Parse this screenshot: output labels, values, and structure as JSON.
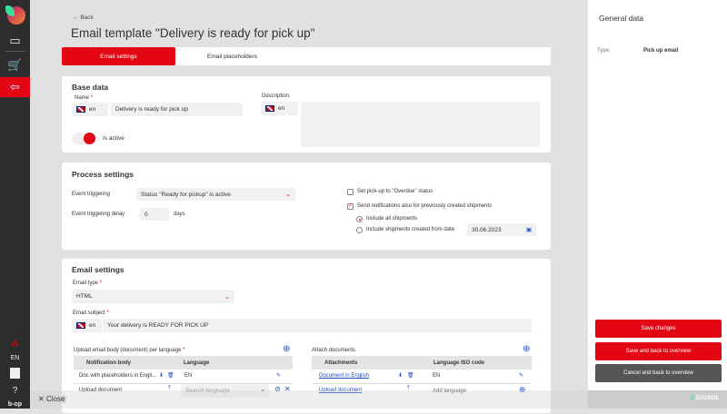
{
  "sidebar": {
    "lang": "EN",
    "icons": [
      "logo",
      "monitor-icon",
      "cart-add-icon",
      "clipboard-back-icon",
      "org-icon",
      "user-icon",
      "help-icon",
      "bop-logo"
    ]
  },
  "header": {
    "back": "Back",
    "title": "Email template \"Delivery is ready for pick up\""
  },
  "tabs": [
    {
      "label": "Email settings",
      "active": true
    },
    {
      "label": "Email placeholders",
      "active": false
    }
  ],
  "base": {
    "title": "Base data",
    "name_label": "Name",
    "required": "*",
    "lang": "en",
    "name_value": "Delivery is ready for pick up",
    "desc_label": "Description",
    "desc_lang": "en",
    "desc_value": "",
    "active_label": "Is active",
    "active": true
  },
  "process": {
    "title": "Process settings",
    "event_label": "Event triggering",
    "event_value": "Status \"Ready for pickup\" is active",
    "delay_label": "Event triggering delay",
    "delay_value": "0",
    "delay_unit": "days",
    "overdue_label": "Set pick-up to \"Overdue\" status",
    "overdue_checked": false,
    "prev_label": "Send notifications also for previously created shipments",
    "prev_checked": true,
    "include_all": "Include all shipments",
    "include_from": "Include shipments created from date",
    "date": "30.06.2023",
    "selected": "include_all"
  },
  "email": {
    "title": "Email settings",
    "type_label": "Email type",
    "type_value": "HTML",
    "subject_label": "Email subject",
    "subject_lang": "en",
    "subject_value": "Your delivery is READY FOR PICK UP",
    "body_label": "Upload email body (document) per language",
    "body_cols": [
      "Notification body",
      "Language"
    ],
    "body_rows": [
      {
        "name": "Doc with placeholders in Engli...",
        "lang": "EN"
      }
    ],
    "body_upload": "Upload document",
    "search_placeholder": "Search language",
    "attach_label": "Attach documents",
    "attach_cols": [
      "Attachments",
      "Language ISO code"
    ],
    "attach_rows": [
      {
        "name": "Document in English",
        "lang": "EN"
      }
    ],
    "attach_upload": "Upload document",
    "add_language": "Add language"
  },
  "right": {
    "title": "General data",
    "type_label": "Type:",
    "type_value": "Pick up email",
    "save": "Save changes",
    "save_back": "Save and back to overview",
    "cancel": "Cancel and back to overview"
  },
  "footer": {
    "close": "Close",
    "brand": "ZUGSEIL"
  },
  "colors": {
    "accent": "#e30613",
    "sidebar": "#2d2d2d",
    "link": "#1d4fc4",
    "cancel": "#555555"
  }
}
